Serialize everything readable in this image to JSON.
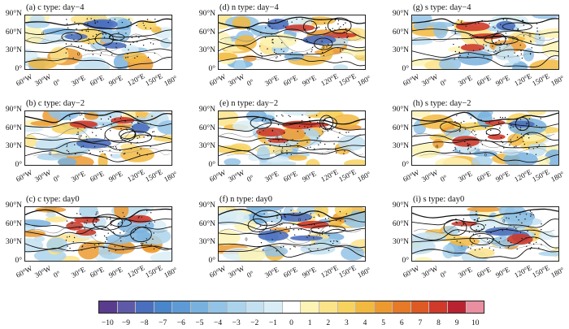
{
  "panels": [
    {
      "title": "(a) c type: day−4"
    },
    {
      "title": "(d) n type: day−4"
    },
    {
      "title": "(g) s type: day−4"
    },
    {
      "title": "(b) c type: day−2"
    },
    {
      "title": "(e) n type: day−2"
    },
    {
      "title": "(h) s type: day−2"
    },
    {
      "title": "(c) c type: day0"
    },
    {
      "title": "(f) n type: day0"
    },
    {
      "title": "(i) s type: day0"
    }
  ],
  "lat_labels": [
    "90°N",
    "60°N",
    "30°N",
    "0°"
  ],
  "lon_labels": [
    "60°W",
    "30°W",
    "0°",
    "30°E",
    "60°E",
    "90°E",
    "120°E",
    "150°E",
    "180°"
  ],
  "contour_label": "0",
  "colorbar": {
    "labels": [
      "−10",
      "−9",
      "−8",
      "−7",
      "−6",
      "−5",
      "−4",
      "−3",
      "−2",
      "−1",
      "0",
      "1",
      "2",
      "3",
      "4",
      "5",
      "6",
      "7",
      "8",
      "9",
      "10"
    ],
    "colors": [
      "#5a3c8f",
      "#5f5aa8",
      "#4b6fbf",
      "#4a86cc",
      "#5e9bd6",
      "#79b1de",
      "#93c3e6",
      "#acd3ec",
      "#c3e1f1",
      "#d9edf6",
      "#ffffff",
      "#fdf3b4",
      "#fbe38a",
      "#f7d25f",
      "#f2b940",
      "#ec9a30",
      "#e67a28",
      "#de5a24",
      "#cf3a2a",
      "#b92331",
      "#e98fa0"
    ]
  }
}
